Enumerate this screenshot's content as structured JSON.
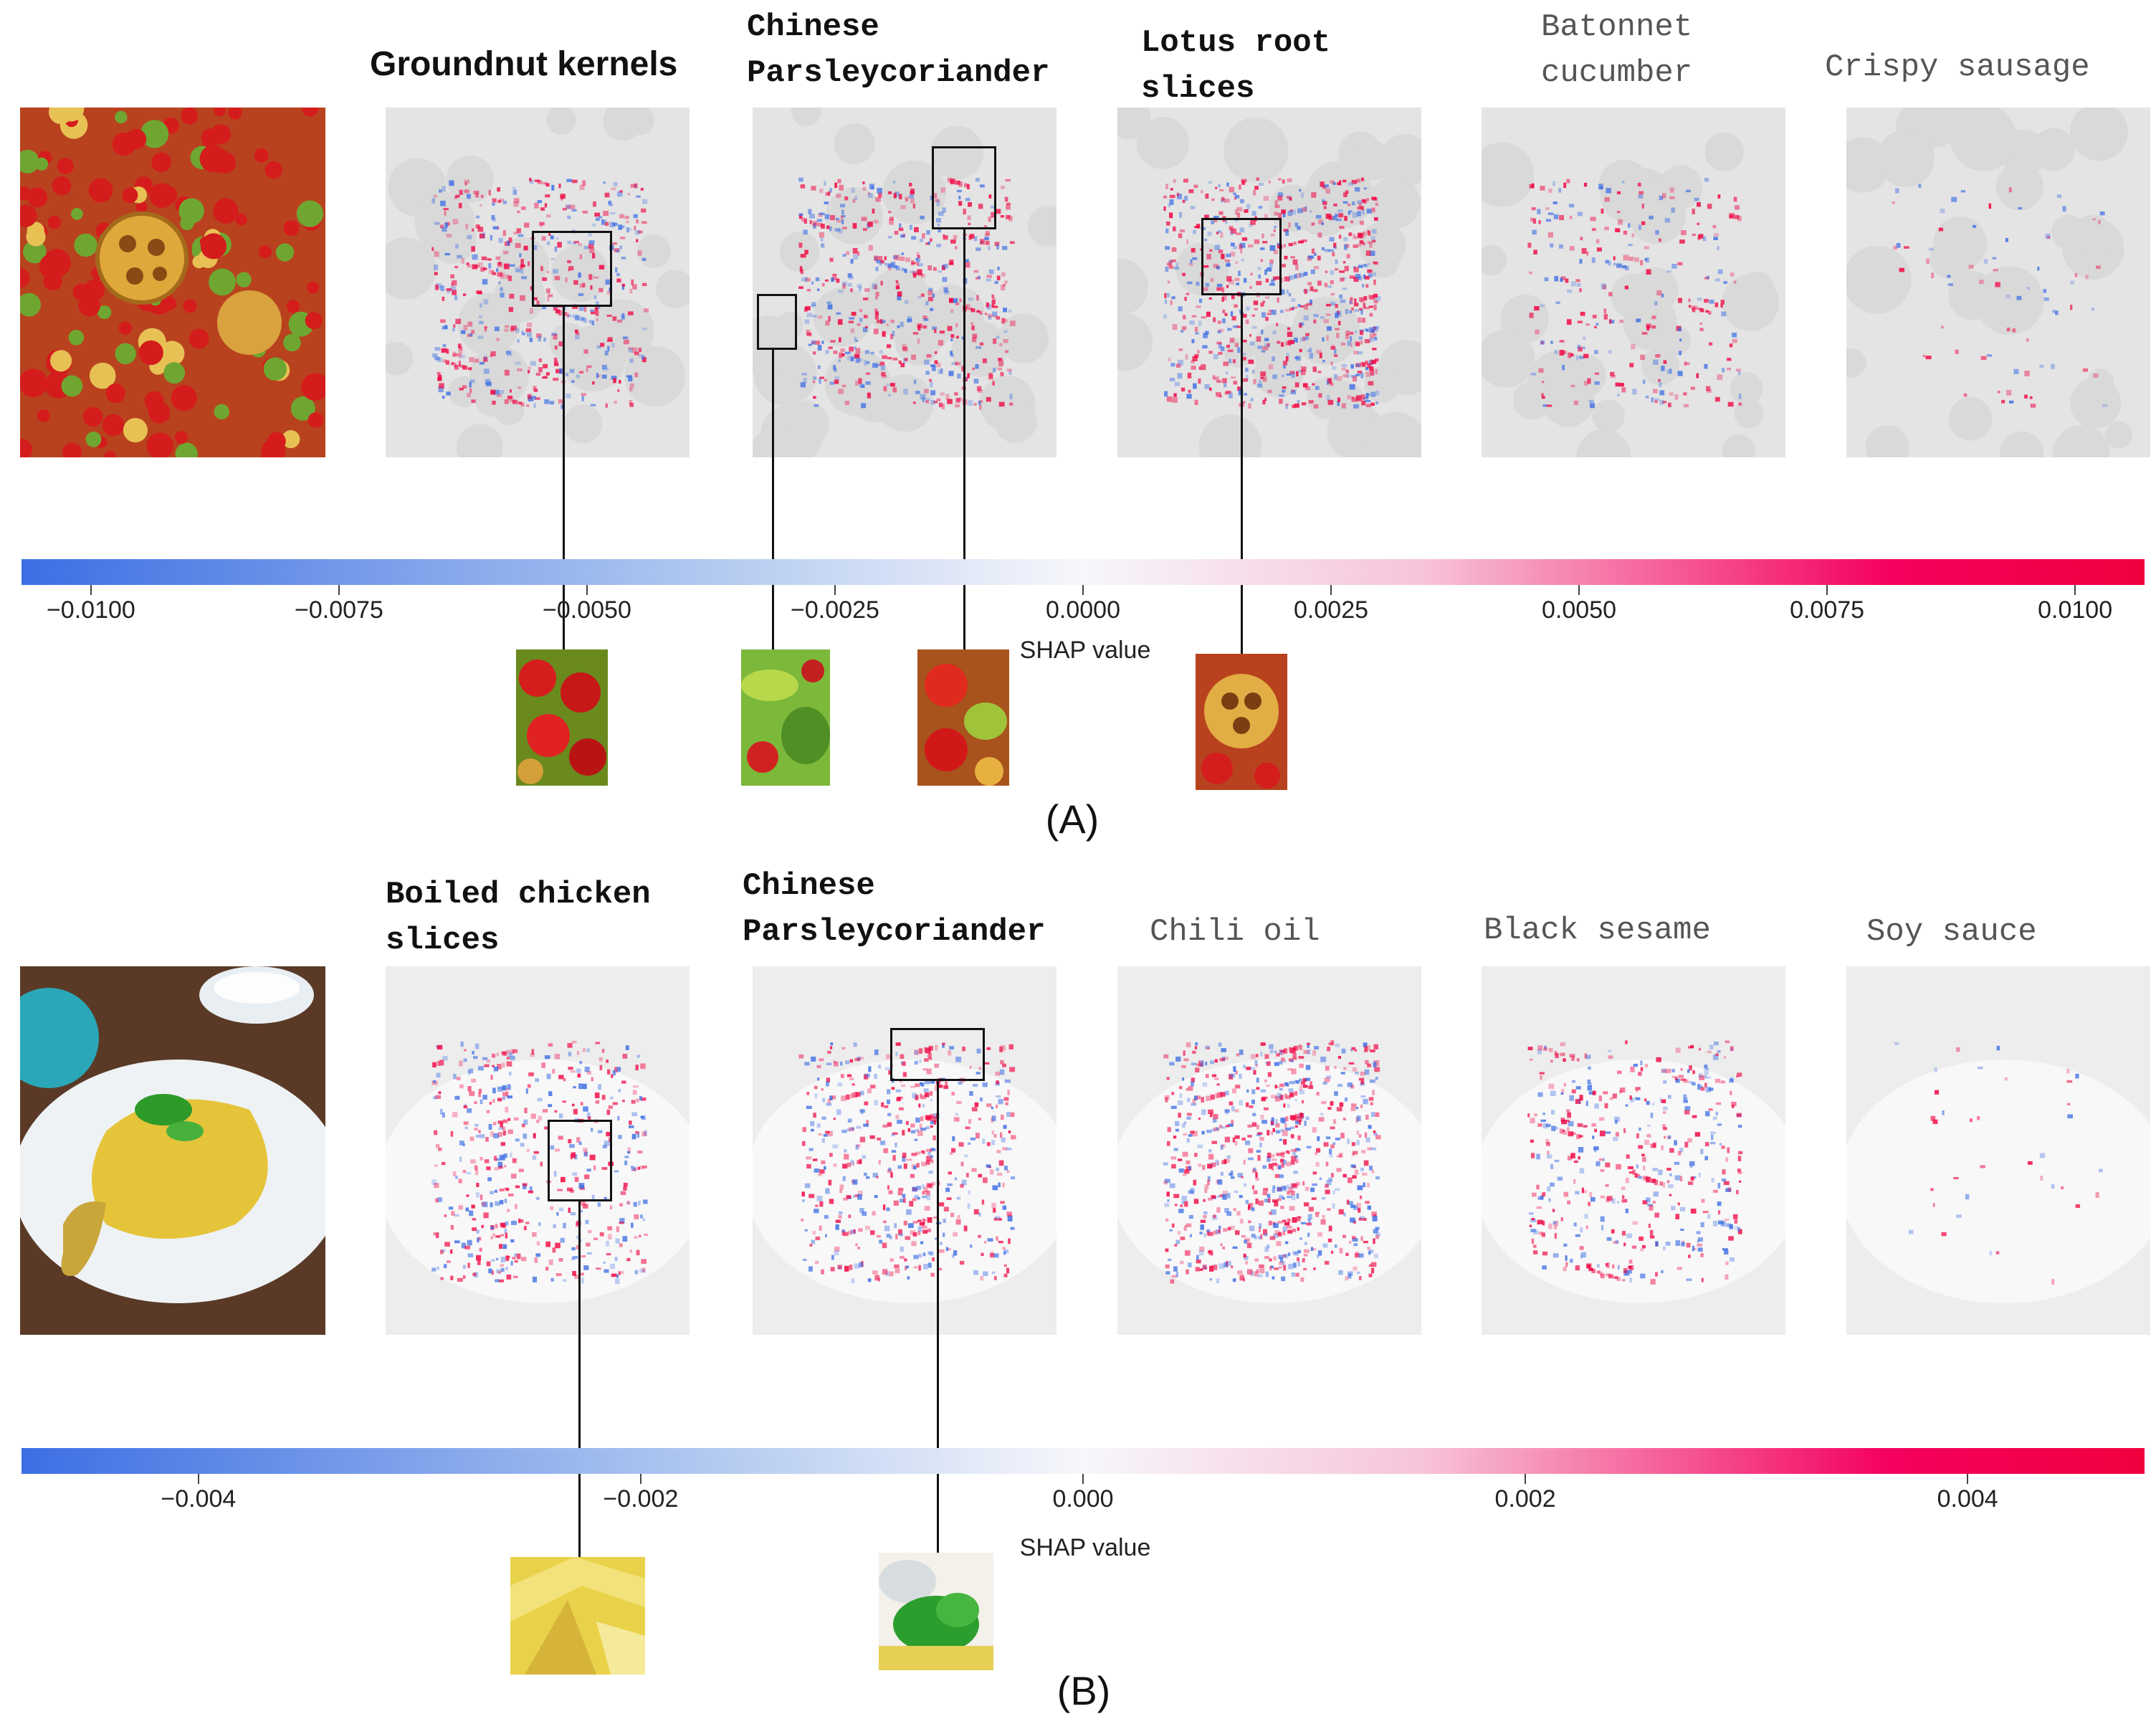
{
  "panel_a": {
    "label": "(A)",
    "ingredients": [
      {
        "label": "Groundnut kernels",
        "style": "sans-bold"
      },
      {
        "label": "Chinese\nParsleycoriander",
        "style": "mono-bold"
      },
      {
        "label": "Lotus root\nslices",
        "style": "mono-bold"
      },
      {
        "label": "Batonnet\ncucumber",
        "style": "mono-light"
      },
      {
        "label": "Crispy sausage",
        "style": "mono-light"
      }
    ],
    "colorbar": {
      "ticks": [
        "−0.0100",
        "−0.0075",
        "−0.0050",
        "−0.0025",
        "0.0000",
        "0.0025",
        "0.0050",
        "0.0075",
        "0.0100"
      ],
      "tick_values": [
        -0.01,
        -0.0075,
        -0.005,
        -0.0025,
        0,
        0.0025,
        0.005,
        0.0075,
        0.01
      ],
      "range": [
        -0.0107,
        0.0107
      ],
      "label": "SHAP value",
      "low_color": "#3d6ee4",
      "high_color": "#f1003e"
    }
  },
  "panel_b": {
    "label": "(B)",
    "ingredients": [
      {
        "label": "Boiled chicken\nslices",
        "style": "mono-bold"
      },
      {
        "label": "Chinese\nParsleycoriander",
        "style": "mono-bold"
      },
      {
        "label": "Chili oil",
        "style": "mono-light"
      },
      {
        "label": "Black sesame",
        "style": "mono-light"
      },
      {
        "label": "Soy sauce",
        "style": "mono-light"
      }
    ],
    "colorbar": {
      "ticks": [
        "−0.004",
        "−0.002",
        "0.000",
        "0.002",
        "0.004"
      ],
      "tick_values": [
        -0.004,
        -0.002,
        0,
        0.002,
        0.004
      ],
      "range": [
        -0.0048,
        0.0048
      ],
      "label": "SHAP value",
      "low_color": "#3d6ee4",
      "high_color": "#f1003e"
    }
  },
  "colors": {
    "negative": "#3d6ee4",
    "positive": "#f1003e",
    "heatmap_bg": "#e6e6e6"
  }
}
